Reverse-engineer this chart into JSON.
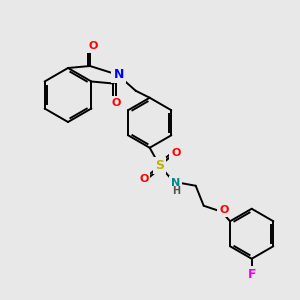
{
  "bg_color": "#e8e8e8",
  "bond_color": "#000000",
  "atom_colors": {
    "O": "#ff0000",
    "N_blue": "#0000ff",
    "N_teal": "#008b8b",
    "S": "#b8b800",
    "F": "#ee00ee",
    "H": "#555555",
    "C": "#000000"
  },
  "figsize": [
    3.0,
    3.0
  ],
  "dpi": 100
}
